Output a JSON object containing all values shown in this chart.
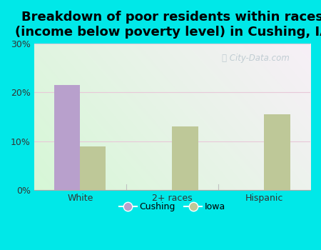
{
  "title": "Breakdown of poor residents within races\n(income below poverty level) in Cushing, IA",
  "categories": [
    "White",
    "2+ races",
    "Hispanic"
  ],
  "cushing_values": [
    21.5,
    0,
    0
  ],
  "iowa_values": [
    9.0,
    13.0,
    15.5
  ],
  "cushing_color": "#b8a0cc",
  "iowa_color": "#bec898",
  "background_color": "#00e8e8",
  "ylim": [
    0,
    30
  ],
  "yticks": [
    0,
    10,
    20,
    30
  ],
  "ytick_labels": [
    "0%",
    "10%",
    "20%",
    "30%"
  ],
  "bar_width": 0.28,
  "title_fontsize": 13,
  "legend_labels": [
    "Cushing",
    "Iowa"
  ],
  "watermark": "City-Data.com",
  "grid_color": "#e8c8d8",
  "separator_color": "#c0c0c0"
}
